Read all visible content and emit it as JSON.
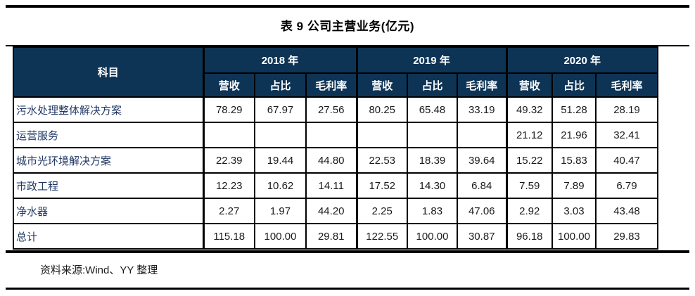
{
  "title": "表 9  公司主营业务(亿元)",
  "source_note": "资料来源:Wind、YY 整理",
  "colors": {
    "header_bg": "#0E3455",
    "header_text": "#FFFFFF",
    "row_label_text": "#203864",
    "value_text": "#1A1A1A",
    "rule_color": "#000000"
  },
  "table": {
    "corner_header": "科目",
    "year_groups": [
      "2018 年",
      "2019 年",
      "2020 年"
    ],
    "metric_headers": [
      "营收",
      "占比",
      "毛利率"
    ],
    "rows": [
      {
        "label": "污水处理整体解决方案",
        "values": [
          "78.29",
          "67.97",
          "27.56",
          "80.25",
          "65.48",
          "33.19",
          "49.32",
          "51.28",
          "28.19"
        ]
      },
      {
        "label": "运营服务",
        "values": [
          "",
          "",
          "",
          "",
          "",
          "",
          "21.12",
          "21.96",
          "32.41"
        ]
      },
      {
        "label": "城市光环境解决方案",
        "values": [
          "22.39",
          "19.44",
          "44.80",
          "22.53",
          "18.39",
          "39.64",
          "15.22",
          "15.83",
          "40.47"
        ]
      },
      {
        "label": "市政工程",
        "values": [
          "12.23",
          "10.62",
          "14.11",
          "17.52",
          "14.30",
          "6.84",
          "7.59",
          "7.89",
          "6.79"
        ]
      },
      {
        "label": "净水器",
        "values": [
          "2.27",
          "1.97",
          "44.20",
          "2.25",
          "1.83",
          "47.06",
          "2.92",
          "3.03",
          "43.48"
        ]
      },
      {
        "label": "总计",
        "values": [
          "115.18",
          "100.00",
          "29.81",
          "122.55",
          "100.00",
          "30.87",
          "96.18",
          "100.00",
          "29.83"
        ]
      }
    ]
  }
}
